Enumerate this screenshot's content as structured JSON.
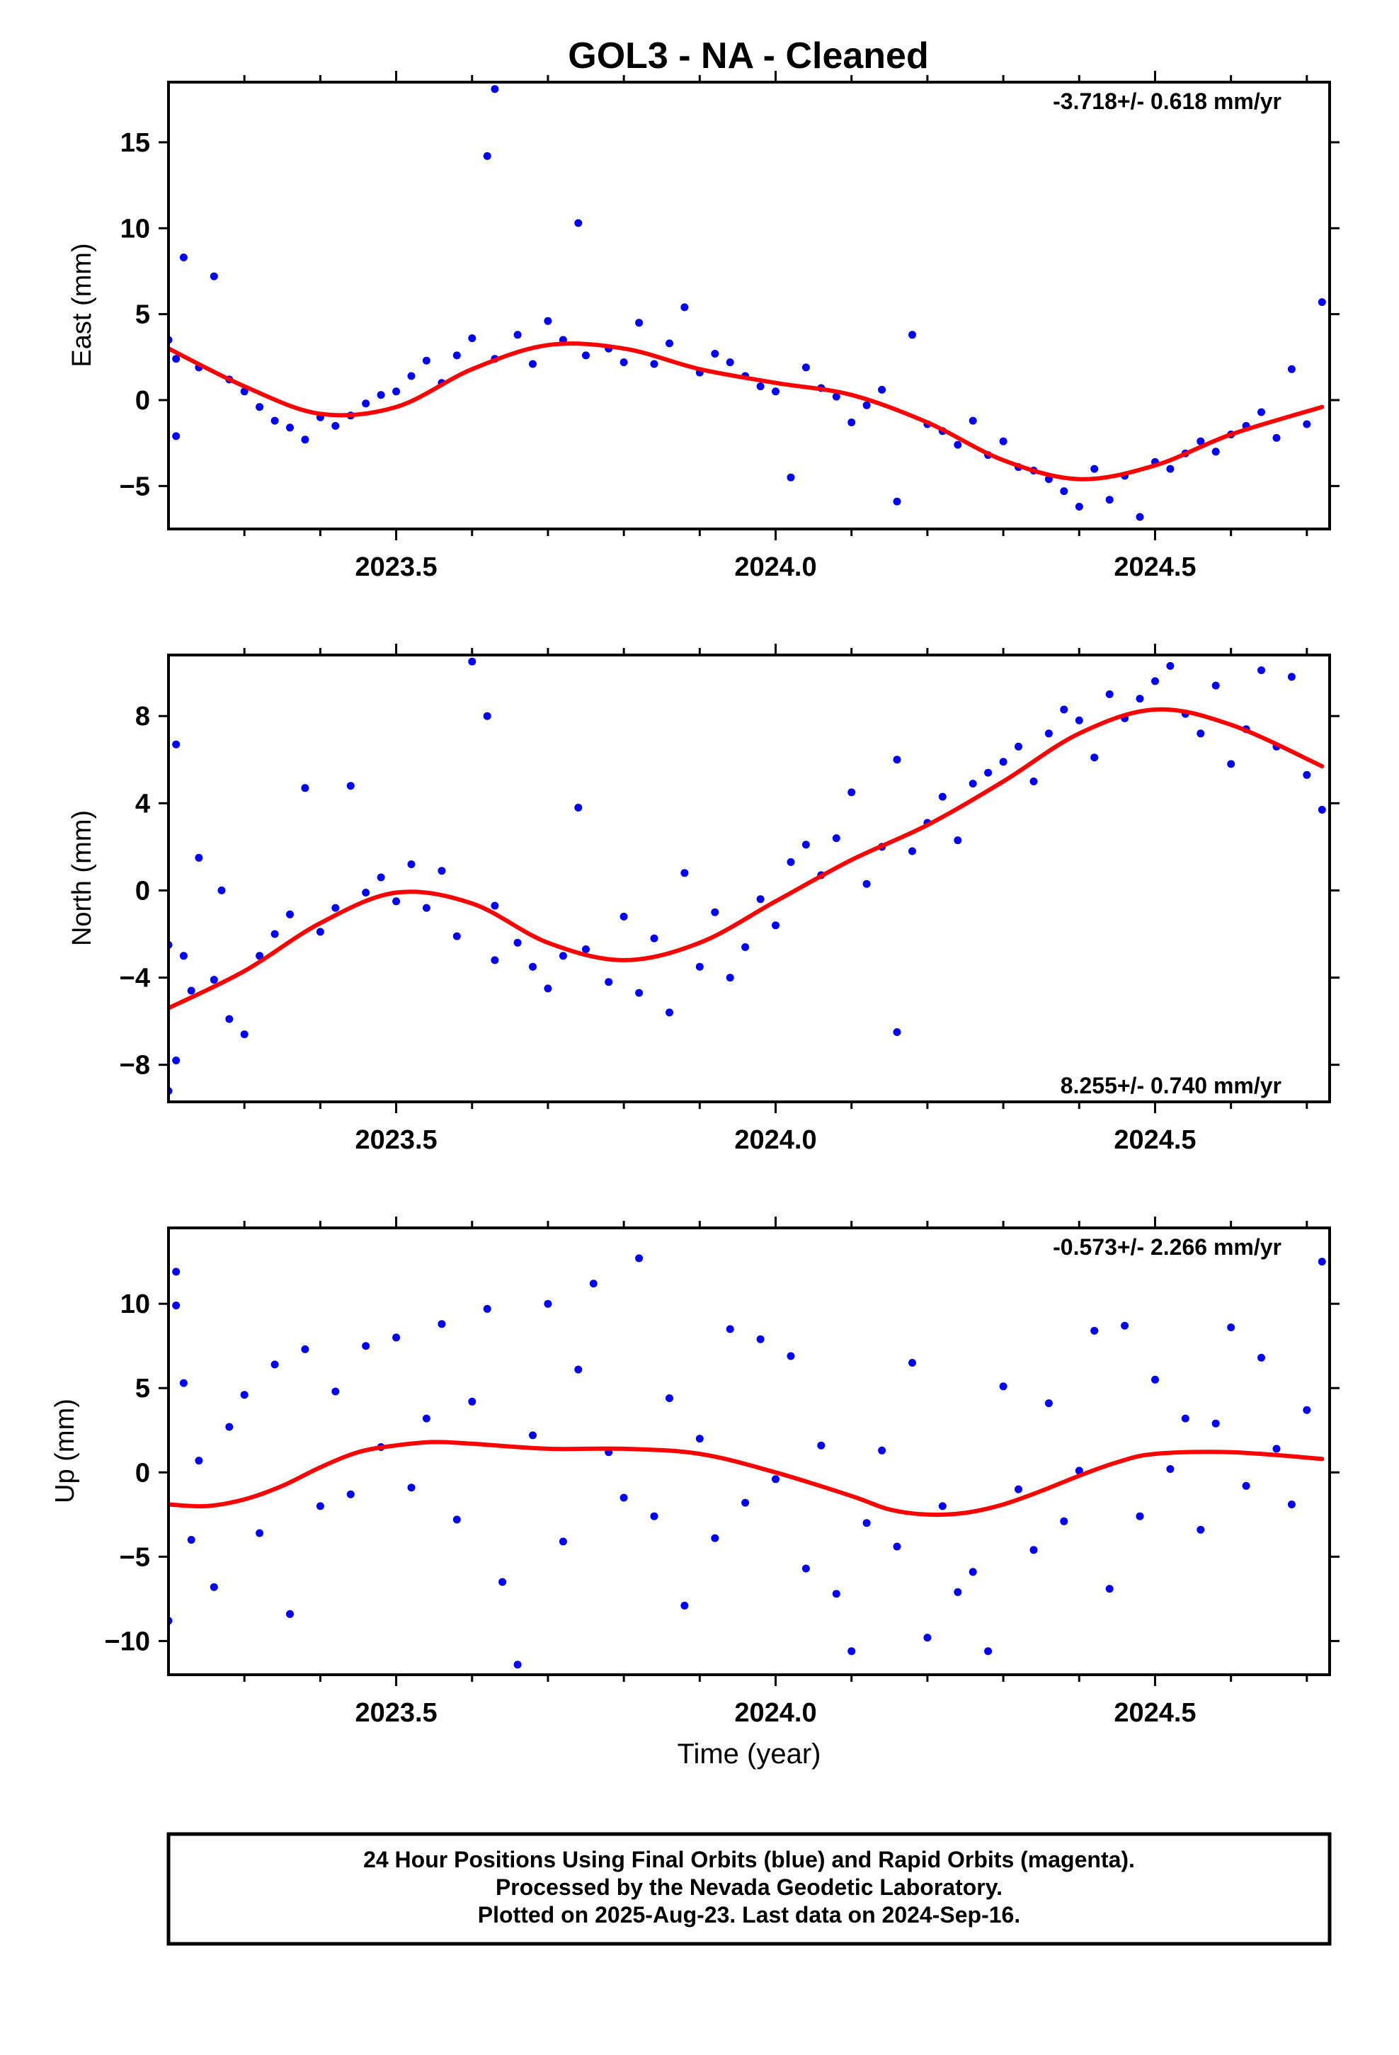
{
  "title": "GOL3  - NA - Cleaned",
  "x_axis": {
    "label": "Time (year)",
    "range": [
      2023.2,
      2024.73
    ],
    "ticks": [
      "2023.5",
      "2024.0",
      "2024.5"
    ]
  },
  "footer": {
    "lines": [
      "24 Hour Positions Using Final Orbits (blue) and Rapid Orbits (magenta).",
      "Processed by the Nevada Geodetic Laboratory.",
      "Plotted on 2025-Aug-23. Last data on 2024-Sep-16."
    ]
  },
  "colors": {
    "points": "#0000ff",
    "fit": "#ff0000",
    "frame": "#000000"
  },
  "chart_data": [
    {
      "type": "scatter",
      "ylabel": "East (mm)",
      "ylim": [
        -7.5,
        18.5
      ],
      "yticks": [
        "−5",
        "0",
        "5",
        "10",
        "15"
      ],
      "rate": "-3.718+/- 0.618 mm/yr",
      "rate_position": "top-right",
      "fit": {
        "x": [
          2023.2,
          2023.3,
          2023.4,
          2023.5,
          2023.6,
          2023.7,
          2023.8,
          2023.9,
          2024.0,
          2024.1,
          2024.2,
          2024.3,
          2024.4,
          2024.5,
          2024.6,
          2024.72
        ],
        "y": [
          3.0,
          0.8,
          -0.8,
          -0.4,
          1.8,
          3.2,
          3.0,
          1.8,
          1.0,
          0.3,
          -1.3,
          -3.5,
          -4.6,
          -3.8,
          -2.0,
          -0.4
        ]
      },
      "points": {
        "x": [
          2023.2,
          2023.21,
          2023.21,
          2023.22,
          2023.24,
          2023.26,
          2023.28,
          2023.3,
          2023.32,
          2023.34,
          2023.36,
          2023.38,
          2023.4,
          2023.42,
          2023.44,
          2023.46,
          2023.48,
          2023.5,
          2023.52,
          2023.54,
          2023.56,
          2023.58,
          2023.6,
          2023.62,
          2023.63,
          2023.63,
          2023.66,
          2023.68,
          2023.7,
          2023.72,
          2023.74,
          2023.75,
          2023.78,
          2023.8,
          2023.82,
          2023.84,
          2023.86,
          2023.88,
          2023.9,
          2023.92,
          2023.94,
          2023.96,
          2023.98,
          2024.0,
          2024.02,
          2024.04,
          2024.06,
          2024.08,
          2024.1,
          2024.12,
          2024.14,
          2024.16,
          2024.18,
          2024.2,
          2024.22,
          2024.24,
          2024.26,
          2024.28,
          2024.3,
          2024.32,
          2024.34,
          2024.36,
          2024.38,
          2024.4,
          2024.42,
          2024.44,
          2024.46,
          2024.48,
          2024.5,
          2024.52,
          2024.54,
          2024.56,
          2024.58,
          2024.6,
          2024.62,
          2024.64,
          2024.66,
          2024.68,
          2024.7,
          2024.72
        ],
        "y": [
          3.5,
          -2.1,
          2.4,
          8.3,
          1.9,
          7.2,
          1.2,
          0.5,
          -0.4,
          -1.2,
          -1.6,
          -2.3,
          -1.0,
          -1.5,
          -0.9,
          -0.2,
          0.3,
          0.5,
          1.4,
          2.3,
          1.0,
          2.6,
          3.6,
          14.2,
          18.1,
          2.4,
          3.8,
          2.1,
          4.6,
          3.5,
          10.3,
          2.6,
          3.0,
          2.2,
          4.5,
          2.1,
          3.3,
          5.4,
          1.6,
          2.7,
          2.2,
          1.4,
          0.8,
          0.5,
          -4.5,
          1.9,
          0.7,
          0.2,
          -1.3,
          -0.3,
          0.6,
          -5.9,
          3.8,
          -1.4,
          -1.8,
          -2.6,
          -1.2,
          -3.2,
          -2.4,
          -3.9,
          -4.1,
          -4.6,
          -5.3,
          -6.2,
          -4.0,
          -5.8,
          -4.4,
          -6.8,
          -3.6,
          -4.0,
          -3.1,
          -2.4,
          -3.0,
          -2.0,
          -1.5,
          -0.7,
          -2.2,
          1.8,
          -1.4,
          5.7
        ]
      }
    },
    {
      "type": "scatter",
      "ylabel": "North (mm)",
      "ylim": [
        -9.7,
        10.8
      ],
      "yticks": [
        "−8",
        "−4",
        "0",
        "4",
        "8"
      ],
      "rate": "8.255+/- 0.740 mm/yr",
      "rate_position": "bottom-right",
      "fit": {
        "x": [
          2023.2,
          2023.3,
          2023.4,
          2023.5,
          2023.6,
          2023.7,
          2023.8,
          2023.9,
          2024.0,
          2024.1,
          2024.2,
          2024.3,
          2024.4,
          2024.5,
          2024.6,
          2024.72
        ],
        "y": [
          -5.4,
          -3.7,
          -1.5,
          -0.1,
          -0.6,
          -2.4,
          -3.2,
          -2.4,
          -0.5,
          1.4,
          3.0,
          5.0,
          7.2,
          8.3,
          7.6,
          5.7
        ]
      },
      "points": {
        "x": [
          2023.2,
          2023.2,
          2023.21,
          2023.21,
          2023.22,
          2023.23,
          2023.24,
          2023.26,
          2023.27,
          2023.28,
          2023.3,
          2023.32,
          2023.34,
          2023.36,
          2023.38,
          2023.4,
          2023.42,
          2023.44,
          2023.46,
          2023.48,
          2023.5,
          2023.52,
          2023.54,
          2023.56,
          2023.58,
          2023.6,
          2023.62,
          2023.63,
          2023.63,
          2023.66,
          2023.68,
          2023.7,
          2023.72,
          2023.74,
          2023.75,
          2023.78,
          2023.8,
          2023.82,
          2023.84,
          2023.86,
          2023.88,
          2023.9,
          2023.92,
          2023.94,
          2023.96,
          2023.98,
          2024.0,
          2024.02,
          2024.04,
          2024.06,
          2024.08,
          2024.1,
          2024.12,
          2024.14,
          2024.16,
          2024.16,
          2024.18,
          2024.2,
          2024.22,
          2024.24,
          2024.26,
          2024.28,
          2024.3,
          2024.32,
          2024.34,
          2024.36,
          2024.38,
          2024.4,
          2024.42,
          2024.44,
          2024.46,
          2024.48,
          2024.5,
          2024.52,
          2024.54,
          2024.56,
          2024.58,
          2024.6,
          2024.62,
          2024.64,
          2024.66,
          2024.68,
          2024.7,
          2024.72
        ],
        "y": [
          -2.5,
          -9.2,
          -7.8,
          6.7,
          -3.0,
          -4.6,
          1.5,
          -4.1,
          0.0,
          -5.9,
          -6.6,
          -3.0,
          -2.0,
          -1.1,
          4.7,
          -1.9,
          -0.8,
          4.8,
          -0.1,
          0.6,
          -0.5,
          1.2,
          -0.8,
          0.9,
          -2.1,
          10.5,
          8.0,
          -0.7,
          -3.2,
          -2.4,
          -3.5,
          -4.5,
          -3.0,
          3.8,
          -2.7,
          -4.2,
          -1.2,
          -4.7,
          -2.2,
          -5.6,
          0.8,
          -3.5,
          -1.0,
          -4.0,
          -2.6,
          -0.4,
          -1.6,
          1.3,
          2.1,
          0.7,
          2.4,
          4.5,
          0.3,
          2.0,
          -6.5,
          6.0,
          1.8,
          3.1,
          4.3,
          2.3,
          4.9,
          5.4,
          5.9,
          6.6,
          5.0,
          7.2,
          8.3,
          7.8,
          6.1,
          9.0,
          7.9,
          8.8,
          9.6,
          10.3,
          8.1,
          7.2,
          9.4,
          5.8,
          7.4,
          10.1,
          6.6,
          9.8,
          5.3,
          3.7
        ]
      }
    },
    {
      "type": "scatter",
      "ylabel": "Up (mm)",
      "ylim": [
        -12,
        14.5
      ],
      "yticks": [
        "−10",
        "−5",
        "0",
        "5",
        "10"
      ],
      "rate": "-0.573+/- 2.266 mm/yr",
      "rate_position": "top-right",
      "fit": {
        "x": [
          2023.2,
          2023.25,
          2023.3,
          2023.35,
          2023.4,
          2023.45,
          2023.5,
          2023.55,
          2023.6,
          2023.7,
          2023.8,
          2023.9,
          2024.0,
          2024.1,
          2024.15,
          2024.2,
          2024.25,
          2024.3,
          2024.35,
          2024.4,
          2024.45,
          2024.5,
          2024.6,
          2024.72
        ],
        "y": [
          -1.9,
          -2.0,
          -1.6,
          -0.8,
          0.3,
          1.2,
          1.6,
          1.8,
          1.7,
          1.4,
          1.4,
          1.1,
          0.0,
          -1.4,
          -2.2,
          -2.5,
          -2.4,
          -1.9,
          -1.1,
          -0.2,
          0.6,
          1.1,
          1.2,
          0.8
        ]
      },
      "points": {
        "x": [
          2023.2,
          2023.21,
          2023.21,
          2023.22,
          2023.23,
          2023.24,
          2023.26,
          2023.28,
          2023.3,
          2023.32,
          2023.34,
          2023.36,
          2023.38,
          2023.4,
          2023.42,
          2023.44,
          2023.46,
          2023.48,
          2023.5,
          2023.52,
          2023.54,
          2023.56,
          2023.58,
          2023.6,
          2023.62,
          2023.64,
          2023.66,
          2023.68,
          2023.7,
          2023.72,
          2023.74,
          2023.76,
          2023.78,
          2023.8,
          2023.82,
          2023.84,
          2023.86,
          2023.88,
          2023.9,
          2023.92,
          2023.94,
          2023.96,
          2023.98,
          2024.0,
          2024.02,
          2024.04,
          2024.06,
          2024.08,
          2024.1,
          2024.12,
          2024.14,
          2024.16,
          2024.18,
          2024.2,
          2024.22,
          2024.24,
          2024.26,
          2024.28,
          2024.3,
          2024.32,
          2024.34,
          2024.36,
          2024.38,
          2024.4,
          2024.42,
          2024.44,
          2024.46,
          2024.48,
          2024.5,
          2024.52,
          2024.54,
          2024.56,
          2024.58,
          2024.6,
          2024.62,
          2024.64,
          2024.66,
          2024.68,
          2024.7,
          2024.72
        ],
        "y": [
          -8.8,
          9.9,
          11.9,
          5.3,
          -4.0,
          0.7,
          -6.8,
          2.7,
          4.6,
          -3.6,
          6.4,
          -8.4,
          7.3,
          -2.0,
          4.8,
          -1.3,
          7.5,
          1.5,
          8.0,
          -0.9,
          3.2,
          8.8,
          -2.8,
          4.2,
          9.7,
          -6.5,
          -11.4,
          2.2,
          10.0,
          -4.1,
          6.1,
          11.2,
          1.2,
          -1.5,
          12.7,
          -2.6,
          4.4,
          -7.9,
          2.0,
          -3.9,
          8.5,
          -1.8,
          7.9,
          -0.4,
          6.9,
          -5.7,
          1.6,
          -7.2,
          -10.6,
          -3.0,
          1.3,
          -4.4,
          6.5,
          -9.8,
          -2.0,
          -7.1,
          -5.9,
          -10.6,
          5.1,
          -1.0,
          -4.6,
          4.1,
          -2.9,
          0.1,
          8.4,
          -6.9,
          8.7,
          -2.6,
          5.5,
          0.2,
          3.2,
          -3.4,
          2.9,
          8.6,
          -0.8,
          6.8,
          1.4,
          -1.9,
          3.7,
          12.5
        ]
      }
    }
  ]
}
